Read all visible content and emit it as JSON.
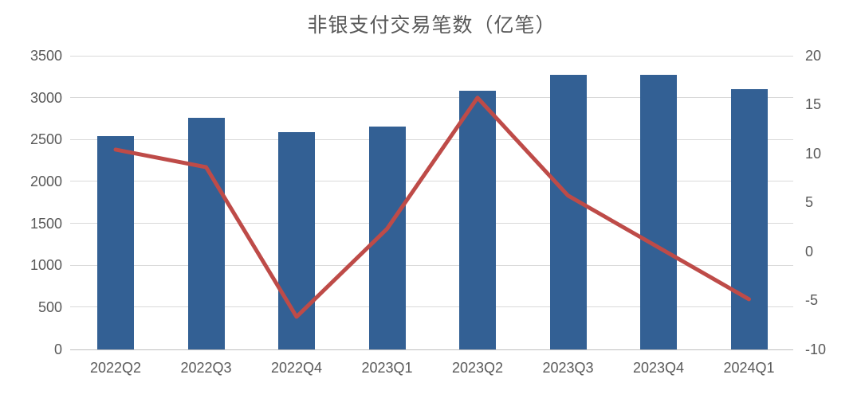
{
  "chart_data": {
    "type": "bar",
    "subtype": "combo-bar-line-dual-axis",
    "title": "非银支付交易笔数（亿笔）",
    "categories": [
      "2022Q2",
      "2022Q3",
      "2022Q4",
      "2023Q1",
      "2023Q2",
      "2023Q3",
      "2023Q4",
      "2024Q1"
    ],
    "series": [
      {
        "name": "bars",
        "type": "bar",
        "axis": "left",
        "values": [
          2540,
          2760,
          2590,
          2650,
          3080,
          3270,
          3270,
          3100
        ]
      },
      {
        "name": "line",
        "type": "line",
        "axis": "right",
        "values": [
          10.4,
          8.6,
          -6.7,
          2.3,
          15.7,
          5.7,
          0.4,
          -4.9
        ]
      }
    ],
    "left_axis": {
      "min": 0,
      "max": 3500,
      "step": 500,
      "tick_labels": [
        "3500",
        "3000",
        "2500",
        "2000",
        "1500",
        "1000",
        "500",
        "0"
      ]
    },
    "right_axis": {
      "min": -10,
      "max": 20,
      "step": 5,
      "tick_labels": [
        "20",
        "15",
        "10",
        "5",
        "0",
        "-5",
        "-10"
      ]
    },
    "grid": true,
    "legend_position": "none"
  },
  "colors": {
    "bar": "#336094",
    "line": "#BE4B48",
    "gridline": "#D9D9D9",
    "axis_line": "#BFBFBF",
    "tick_text": "#595959",
    "title_text": "#595959",
    "background": "#FFFFFF"
  }
}
